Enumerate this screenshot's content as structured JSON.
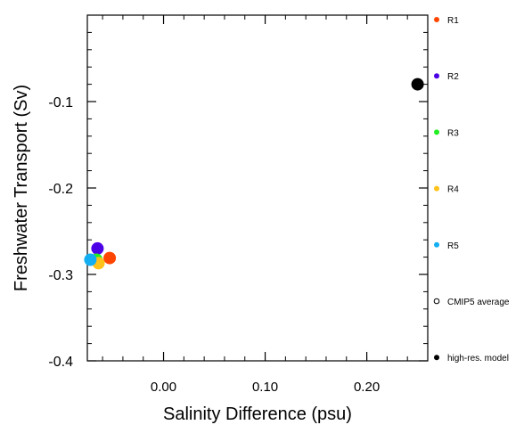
{
  "chart_data": {
    "type": "scatter",
    "title": "",
    "xlabel": "Salinity Difference (psu)",
    "ylabel": "Freshwater Transport (Sv)",
    "xlim": [
      -0.075,
      0.26
    ],
    "ylim": [
      -0.4,
      0.0
    ],
    "xticks": [
      0.0,
      0.1,
      0.2
    ],
    "xtick_labels": [
      "0.00",
      "0.10",
      "0.20"
    ],
    "yticks": [
      -0.1,
      -0.2,
      -0.3,
      -0.4
    ],
    "ytick_labels": [
      "-0.1",
      "-0.2",
      "-0.3",
      "-0.4"
    ],
    "grid": false,
    "legend_position": "right",
    "series": [
      {
        "name": "R1",
        "color": "#ff4500",
        "marker": "filled-circle",
        "points": [
          [
            -0.053,
            -0.281
          ]
        ]
      },
      {
        "name": "R2",
        "color": "#4b00e6",
        "marker": "filled-circle",
        "points": [
          [
            -0.065,
            -0.27
          ]
        ]
      },
      {
        "name": "R3",
        "color": "#22ee22",
        "marker": "filled-circle",
        "points": [
          [
            -0.066,
            -0.283
          ]
        ]
      },
      {
        "name": "R4",
        "color": "#ffc21a",
        "marker": "filled-circle",
        "points": [
          [
            -0.064,
            -0.287
          ]
        ]
      },
      {
        "name": "R5",
        "color": "#13aef2",
        "marker": "filled-circle",
        "points": [
          [
            -0.072,
            -0.283
          ]
        ]
      },
      {
        "name": "CMIP5 average",
        "color": "#000000",
        "marker": "open-circle",
        "points": []
      },
      {
        "name": "high-res. model",
        "color": "#000000",
        "marker": "filled-circle",
        "points": [
          [
            0.25,
            -0.08
          ]
        ]
      }
    ]
  }
}
